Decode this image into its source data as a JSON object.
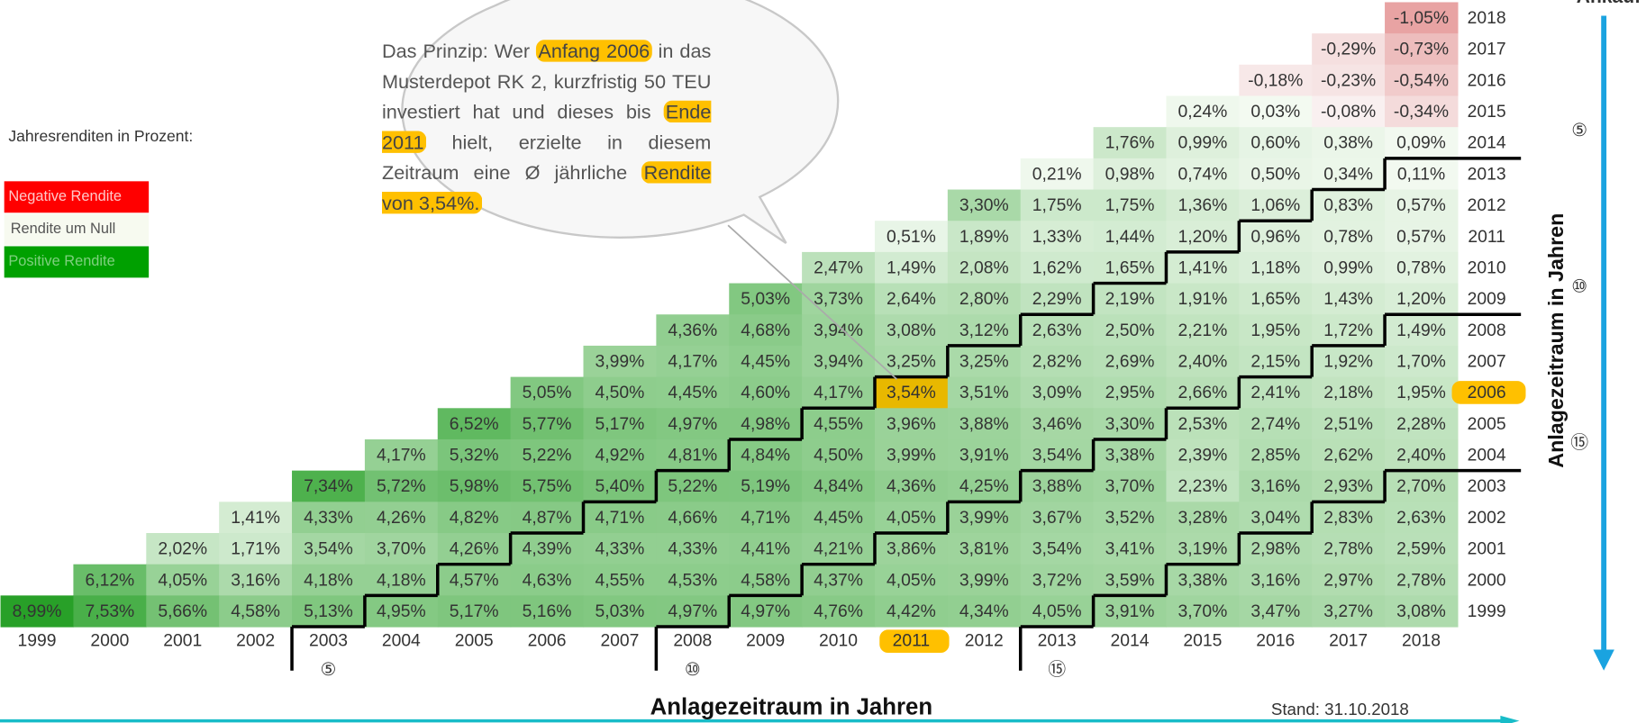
{
  "top_label": "Ankauf",
  "legend": {
    "title": "Jahresrenditen in Prozent:",
    "items": [
      "Negative Rendite",
      "Rendite um Null",
      "Positive Rendite"
    ]
  },
  "bubble": {
    "segments": [
      "Das Prinzip: Wer ",
      "Anfang 2006",
      " in das Musterdepot RK 2, kurzfristig 50 TEU investiert hat und dieses bis ",
      "Ende 2011",
      " hielt, erzielte in diesem Zeitraum eine Ø jährliche ",
      "Rendite von 3,54%."
    ]
  },
  "table": {
    "columns": [
      "1999",
      "2000",
      "2001",
      "2002",
      "2003",
      "2004",
      "2005",
      "2006",
      "2007",
      "2008",
      "2009",
      "2010",
      "2011",
      "2012",
      "2013",
      "2014",
      "2015",
      "2016",
      "2017",
      "2018"
    ],
    "rows": [
      {
        "year": "2018",
        "cells": [
          "-1,05%"
        ]
      },
      {
        "year": "2017",
        "cells": [
          "-0,29%",
          "-0,73%"
        ]
      },
      {
        "year": "2016",
        "cells": [
          "-0,18%",
          "-0,23%",
          "-0,54%"
        ]
      },
      {
        "year": "2015",
        "cells": [
          "0,24%",
          "0,03%",
          "-0,08%",
          "-0,34%"
        ]
      },
      {
        "year": "2014",
        "cells": [
          "1,76%",
          "0,99%",
          "0,60%",
          "0,38%",
          "0,09%"
        ]
      },
      {
        "year": "2013",
        "cells": [
          "0,21%",
          "0,98%",
          "0,74%",
          "0,50%",
          "0,34%",
          "0,11%"
        ]
      },
      {
        "year": "2012",
        "cells": [
          "3,30%",
          "1,75%",
          "1,75%",
          "1,36%",
          "1,06%",
          "0,83%",
          "0,57%"
        ]
      },
      {
        "year": "2011",
        "cells": [
          "0,51%",
          "1,89%",
          "1,33%",
          "1,44%",
          "1,20%",
          "0,96%",
          "0,78%",
          "0,57%"
        ]
      },
      {
        "year": "2010",
        "cells": [
          "2,47%",
          "1,49%",
          "2,08%",
          "1,62%",
          "1,65%",
          "1,41%",
          "1,18%",
          "0,99%",
          "0,78%"
        ]
      },
      {
        "year": "2009",
        "cells": [
          "5,03%",
          "3,73%",
          "2,64%",
          "2,80%",
          "2,29%",
          "2,19%",
          "1,91%",
          "1,65%",
          "1,43%",
          "1,20%"
        ]
      },
      {
        "year": "2008",
        "cells": [
          "4,36%",
          "4,68%",
          "3,94%",
          "3,08%",
          "3,12%",
          "2,63%",
          "2,50%",
          "2,21%",
          "1,95%",
          "1,72%",
          "1,49%"
        ]
      },
      {
        "year": "2007",
        "cells": [
          "3,99%",
          "4,17%",
          "4,45%",
          "3,94%",
          "3,25%",
          "3,25%",
          "2,82%",
          "2,69%",
          "2,40%",
          "2,15%",
          "1,92%",
          "1,70%"
        ]
      },
      {
        "year": "2006",
        "cells": [
          "5,05%",
          "4,50%",
          "4,45%",
          "4,60%",
          "4,17%",
          "3,54%",
          "3,51%",
          "3,09%",
          "2,95%",
          "2,66%",
          "2,41%",
          "2,18%",
          "1,95%"
        ]
      },
      {
        "year": "2005",
        "cells": [
          "6,52%",
          "5,77%",
          "5,17%",
          "4,97%",
          "4,98%",
          "4,55%",
          "3,96%",
          "3,88%",
          "3,46%",
          "3,30%",
          "2,53%",
          "2,74%",
          "2,51%",
          "2,28%"
        ]
      },
      {
        "year": "2004",
        "cells": [
          "4,17%",
          "5,32%",
          "5,22%",
          "4,92%",
          "4,81%",
          "4,84%",
          "4,50%",
          "3,99%",
          "3,91%",
          "3,54%",
          "3,38%",
          "2,39%",
          "2,85%",
          "2,62%",
          "2,40%"
        ]
      },
      {
        "year": "2003",
        "cells": [
          "7,34%",
          "5,72%",
          "5,98%",
          "5,75%",
          "5,40%",
          "5,22%",
          "5,19%",
          "4,84%",
          "4,36%",
          "4,25%",
          "3,88%",
          "3,70%",
          "2,23%",
          "3,16%",
          "2,93%",
          "2,70%"
        ]
      },
      {
        "year": "2002",
        "cells": [
          "1,41%",
          "4,33%",
          "4,26%",
          "4,82%",
          "4,87%",
          "4,71%",
          "4,66%",
          "4,71%",
          "4,45%",
          "4,05%",
          "3,99%",
          "3,67%",
          "3,52%",
          "3,28%",
          "3,04%",
          "2,83%",
          "2,63%"
        ]
      },
      {
        "year": "2001",
        "cells": [
          "2,02%",
          "1,71%",
          "3,54%",
          "3,70%",
          "4,26%",
          "4,39%",
          "4,33%",
          "4,33%",
          "4,41%",
          "4,21%",
          "3,86%",
          "3,81%",
          "3,54%",
          "3,41%",
          "3,19%",
          "2,98%",
          "2,78%",
          "2,59%"
        ]
      },
      {
        "year": "2000",
        "cells": [
          "6,12%",
          "4,05%",
          "3,16%",
          "4,18%",
          "4,18%",
          "4,57%",
          "4,63%",
          "4,55%",
          "4,53%",
          "4,58%",
          "4,37%",
          "4,05%",
          "3,99%",
          "3,72%",
          "3,59%",
          "3,38%",
          "3,16%",
          "2,97%",
          "2,78%"
        ]
      },
      {
        "year": "1999",
        "cells": [
          "8,99%",
          "7,53%",
          "5,66%",
          "4,58%",
          "5,13%",
          "4,95%",
          "5,17%",
          "5,16%",
          "5,03%",
          "4,97%",
          "4,97%",
          "4,76%",
          "4,42%",
          "4,34%",
          "4,05%",
          "3,91%",
          "3,70%",
          "3,47%",
          "3,27%",
          "3,08%"
        ]
      }
    ]
  },
  "period_markers": {
    "x": [
      "⑤",
      "⑩",
      "⑮"
    ],
    "y": [
      "⑤",
      "⑩",
      "⑮"
    ]
  },
  "x_axis_title": "Anlagezeitraum in Jahren",
  "y_axis_title": "Anlagezeitraum in Jahren",
  "footer": "Stand: 31.10.2018"
}
